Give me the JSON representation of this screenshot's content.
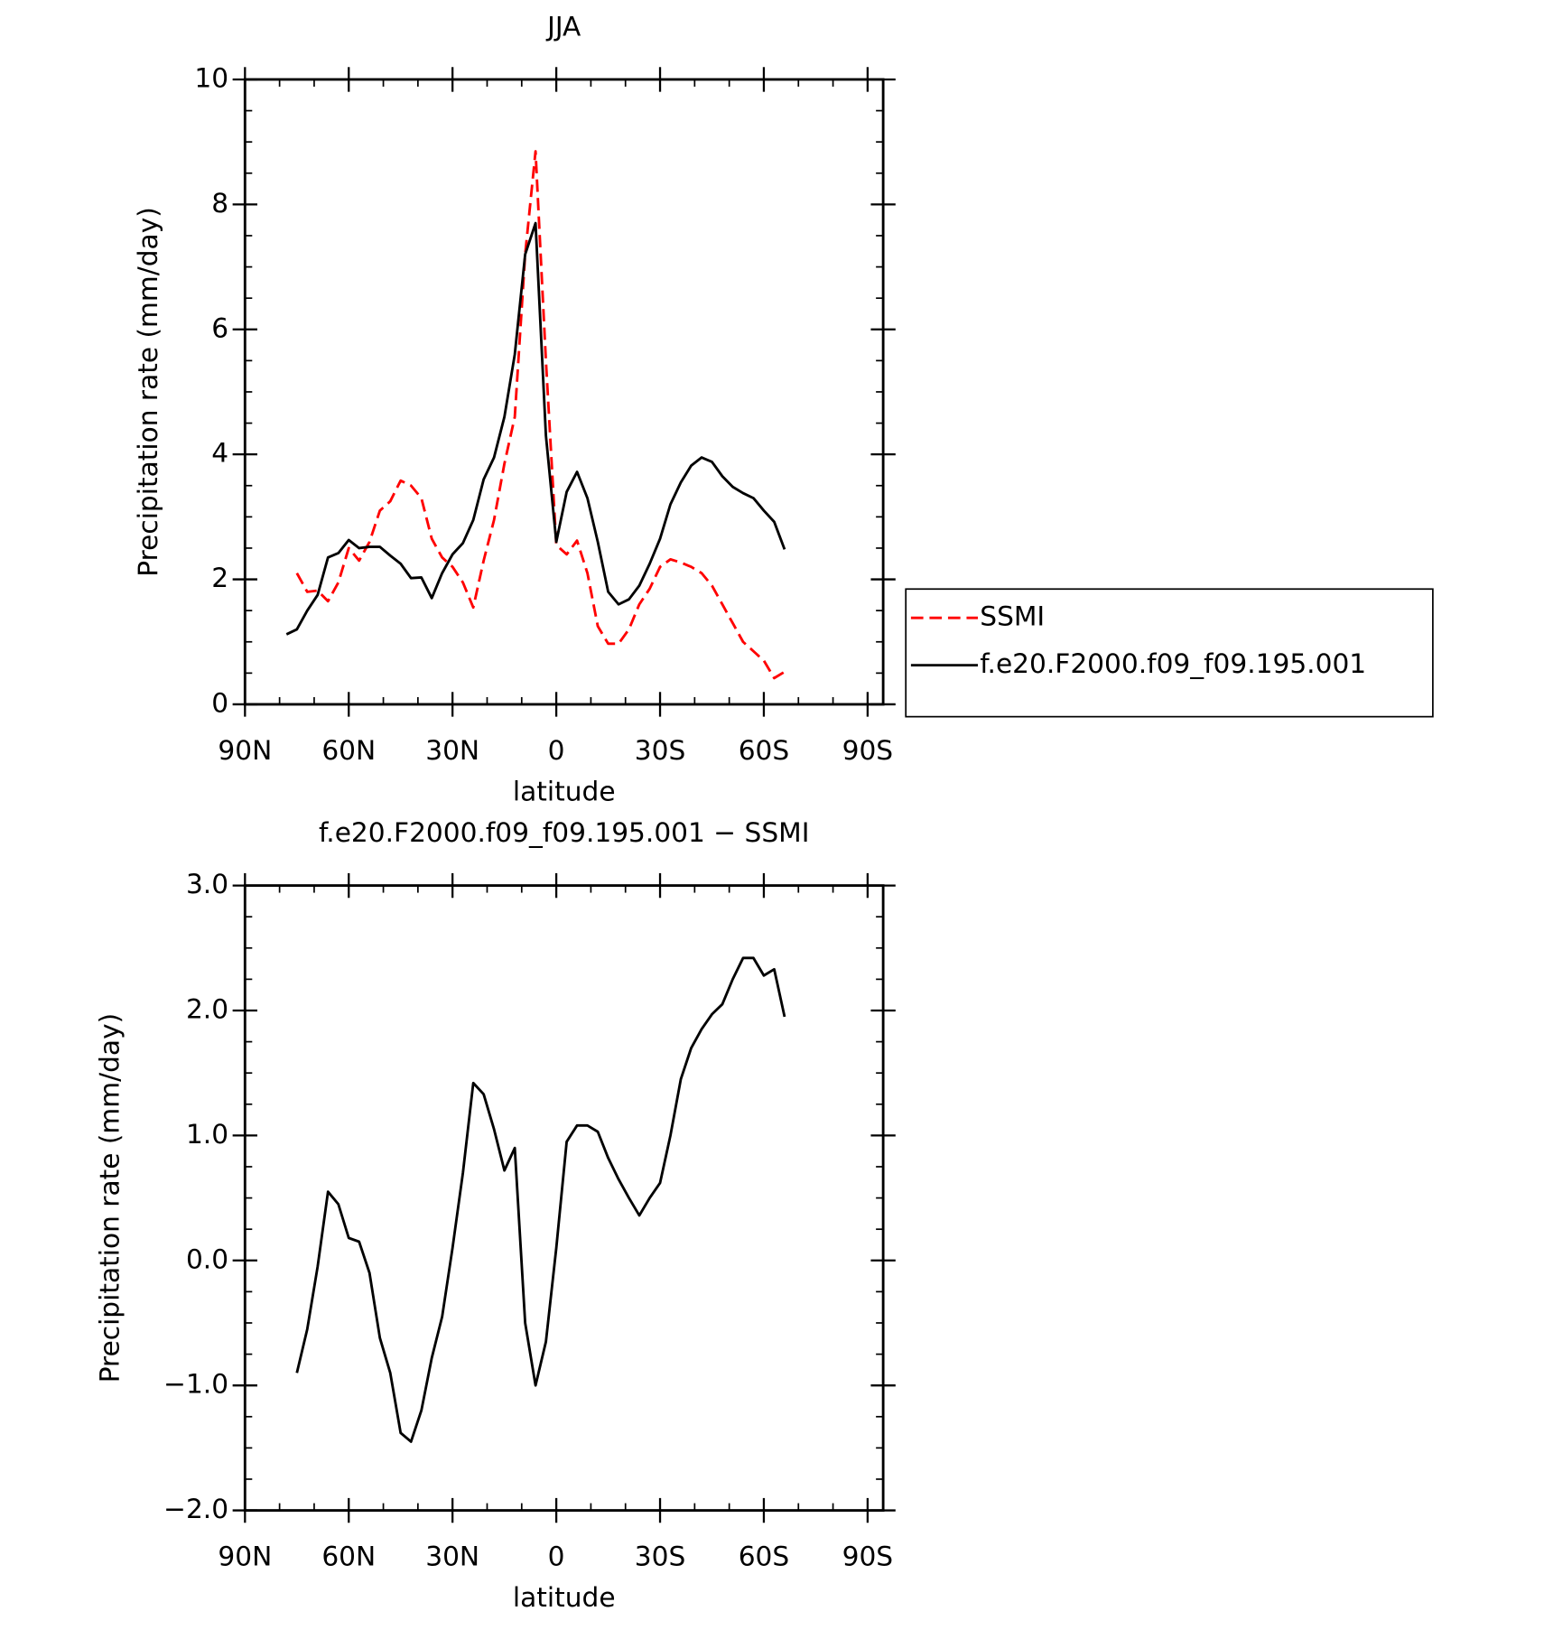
{
  "chart_data": [
    {
      "type": "line",
      "title": "JJA",
      "x_label": "latitude",
      "y_label": "Precipitation rate (mm/day)",
      "x": [
        78,
        75,
        72,
        69,
        66,
        63,
        60,
        57,
        54,
        51,
        48,
        45,
        42,
        39,
        36,
        33,
        30,
        27,
        24,
        21,
        18,
        15,
        12,
        9,
        6,
        3,
        0,
        -3,
        -6,
        -9,
        -12,
        -15,
        -18,
        -21,
        -24,
        -27,
        -30,
        -33,
        -36,
        -39,
        -42,
        -45,
        -48,
        -51,
        -54,
        -57,
        -60,
        -63,
        -66
      ],
      "xlim": [
        90,
        -94.5
      ],
      "xticks": [
        {
          "value": 90,
          "label": "90N"
        },
        {
          "value": 60,
          "label": "60N"
        },
        {
          "value": 30,
          "label": "30N"
        },
        0,
        {
          "value": -30,
          "label": "30S"
        },
        {
          "value": -60,
          "label": "60S"
        },
        {
          "value": -90,
          "label": "90S"
        }
      ],
      "ylim": [
        0,
        10
      ],
      "yticks": [
        0,
        2,
        4,
        6,
        8,
        10
      ],
      "legend": "right",
      "series": [
        {
          "name": "SSMI",
          "color": "#ff0000",
          "style": "dashed",
          "values": [
            null,
            2.1,
            1.8,
            1.82,
            1.65,
            1.95,
            2.5,
            2.3,
            2.6,
            3.1,
            3.25,
            3.58,
            3.5,
            3.3,
            2.65,
            2.35,
            2.2,
            1.95,
            1.55,
            2.3,
            2.95,
            3.85,
            4.6,
            7.2,
            8.85,
            5.5,
            2.55,
            2.4,
            2.62,
            2.1,
            1.25,
            0.97,
            0.97,
            1.2,
            1.6,
            1.85,
            2.2,
            2.32,
            2.27,
            2.2,
            2.1,
            1.9,
            1.6,
            1.3,
            1.0,
            0.85,
            0.7,
            0.42,
            0.52
          ]
        },
        {
          "name": "f.e20.F2000.f09_f09.195.001",
          "color": "#000000",
          "style": "solid",
          "values": [
            1.12,
            1.2,
            1.5,
            1.75,
            2.35,
            2.42,
            2.63,
            2.5,
            2.52,
            2.52,
            2.38,
            2.25,
            2.02,
            2.03,
            1.7,
            2.1,
            2.4,
            2.58,
            2.95,
            3.6,
            3.95,
            4.6,
            5.6,
            7.2,
            7.7,
            4.3,
            2.6,
            3.4,
            3.72,
            3.3,
            2.6,
            1.8,
            1.6,
            1.68,
            1.9,
            2.25,
            2.65,
            3.2,
            3.55,
            3.82,
            3.95,
            3.88,
            3.65,
            3.48,
            3.38,
            3.3,
            3.1,
            2.92,
            2.48
          ]
        }
      ]
    },
    {
      "type": "line",
      "title": "f.e20.F2000.f09_f09.195.001 − SSMI",
      "x_label": "latitude",
      "y_label": "Precipitation rate (mm/day)",
      "x": [
        75,
        72,
        69,
        66,
        63,
        60,
        57,
        54,
        51,
        48,
        45,
        42,
        39,
        36,
        33,
        30,
        27,
        24,
        21,
        18,
        15,
        12,
        9,
        6,
        3,
        0,
        -3,
        -6,
        -9,
        -12,
        -15,
        -18,
        -21,
        -24,
        -27,
        -30,
        -33,
        -36,
        -39,
        -42,
        -45,
        -48,
        -51,
        -54,
        -57,
        -60,
        -63,
        -66
      ],
      "xlim": [
        90,
        -94.5
      ],
      "xticks": [
        {
          "value": 90,
          "label": "90N"
        },
        {
          "value": 60,
          "label": "60N"
        },
        {
          "value": 30,
          "label": "30N"
        },
        0,
        {
          "value": -30,
          "label": "30S"
        },
        {
          "value": -60,
          "label": "60S"
        },
        {
          "value": -90,
          "label": "90S"
        }
      ],
      "ylim": [
        -2,
        3
      ],
      "yticks": [
        {
          "value": -2,
          "label": "−2.0"
        },
        {
          "value": -1,
          "label": "−1.0"
        },
        {
          "value": 0,
          "label": "0.0"
        },
        {
          "value": 1,
          "label": "1.0"
        },
        {
          "value": 2,
          "label": "2.0"
        },
        {
          "value": 3,
          "label": "3.0"
        }
      ],
      "series": [
        {
          "color": "#000000",
          "style": "solid",
          "values": [
            -0.9,
            -0.55,
            -0.05,
            0.55,
            0.45,
            0.18,
            0.15,
            -0.1,
            -0.62,
            -0.9,
            -1.38,
            -1.45,
            -1.2,
            -0.78,
            -0.45,
            0.1,
            0.7,
            1.42,
            1.33,
            1.05,
            0.72,
            0.9,
            -0.5,
            -1.0,
            -0.65,
            0.1,
            0.95,
            1.08,
            1.08,
            1.03,
            0.82,
            0.65,
            0.5,
            0.36,
            0.5,
            0.62,
            1.0,
            1.45,
            1.7,
            1.85,
            1.97,
            2.05,
            2.25,
            2.42,
            2.42,
            2.28,
            2.33,
            1.95
          ]
        }
      ]
    }
  ]
}
